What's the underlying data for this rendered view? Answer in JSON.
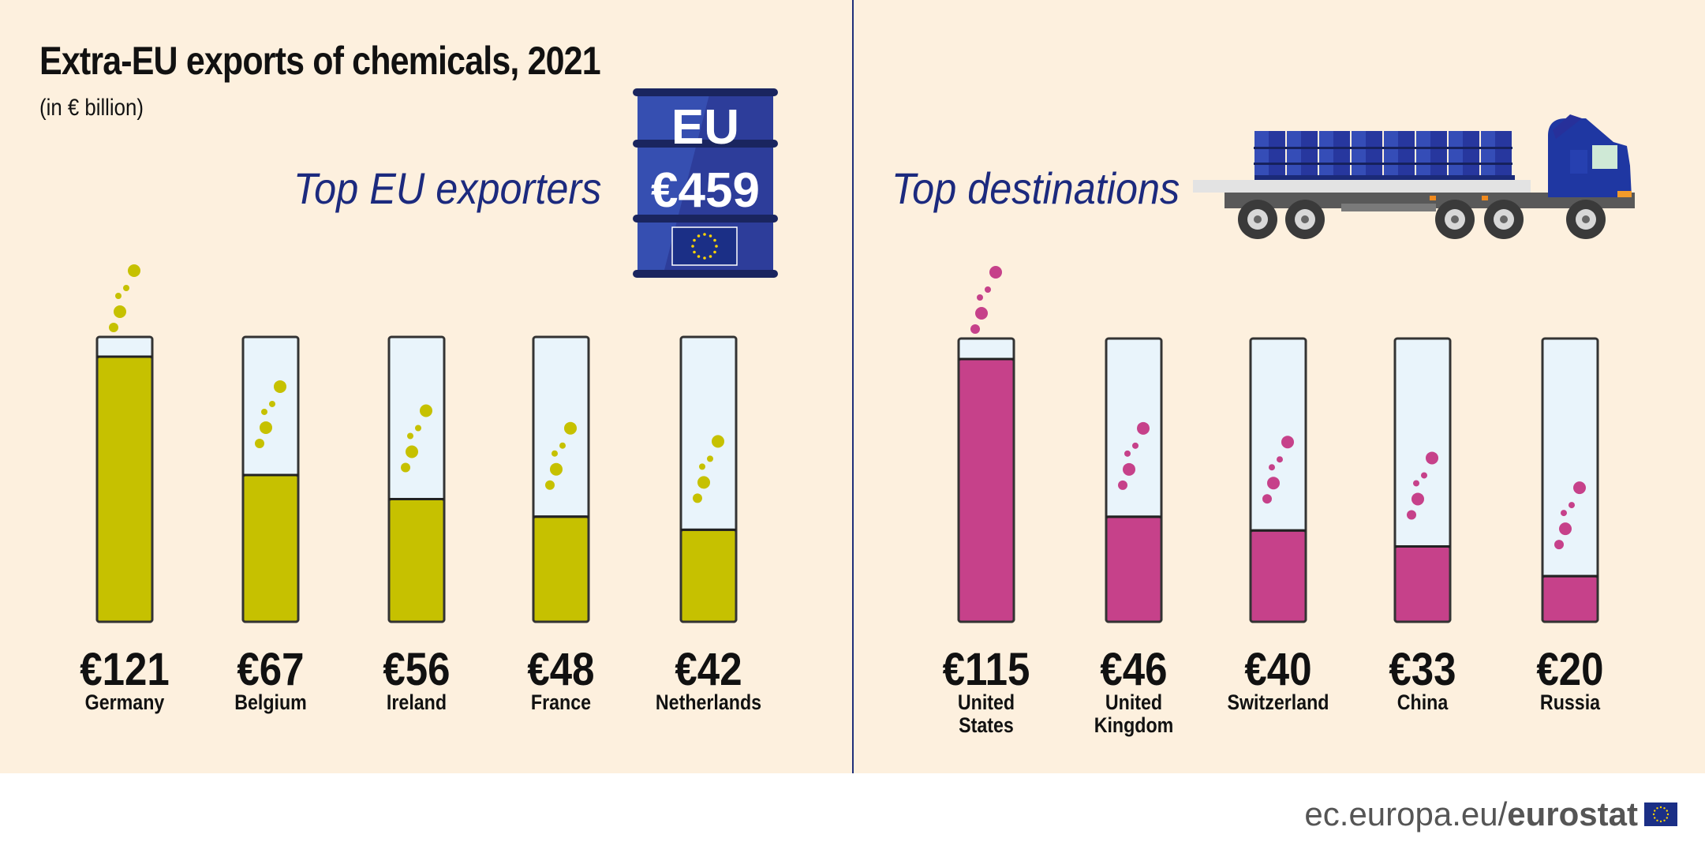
{
  "header": {
    "title": "Extra-EU exports of chemicals, 2021",
    "subtitle": "(in € billion)"
  },
  "barrel": {
    "top_label": "EU",
    "total_label": "€459"
  },
  "footer": {
    "domain": "ec.europa.eu/",
    "brand": "eurostat"
  },
  "colors": {
    "background": "#fdf0de",
    "exporters_fill": "#c6c100",
    "destinations_fill": "#c6418a",
    "tube_empty": "#e9f4fb",
    "heading_blue": "#1c2a7e"
  },
  "icons": [
    "barrel-icon",
    "eu-flag-icon",
    "truck-icon",
    "bubbles-icon"
  ],
  "chart_data": [
    {
      "type": "bar",
      "title": "Top EU exporters",
      "categories": [
        "Germany",
        "Belgium",
        "Ireland",
        "France",
        "Netherlands"
      ],
      "category_lines": [
        [
          "Germany"
        ],
        [
          "Belgium"
        ],
        [
          "Ireland"
        ],
        [
          "France"
        ],
        [
          "Netherlands"
        ]
      ],
      "values": [
        121,
        67,
        56,
        48,
        42
      ],
      "value_labels": [
        "€121",
        "€67",
        "€56",
        "€48",
        "€42"
      ],
      "ylim": [
        0,
        130
      ],
      "color": "#c6c100",
      "grid": false
    },
    {
      "type": "bar",
      "title": "Top destinations",
      "categories": [
        "United States",
        "United Kingdom",
        "Switzerland",
        "China",
        "Russia"
      ],
      "category_lines": [
        [
          "United",
          "States"
        ],
        [
          "United",
          "Kingdom"
        ],
        [
          "Switzerland"
        ],
        [
          "China"
        ],
        [
          "Russia"
        ]
      ],
      "values": [
        115,
        46,
        40,
        33,
        20
      ],
      "value_labels": [
        "€115",
        "€46",
        "€40",
        "€33",
        "€20"
      ],
      "ylim": [
        0,
        124
      ],
      "color": "#c6418a",
      "grid": false
    }
  ]
}
